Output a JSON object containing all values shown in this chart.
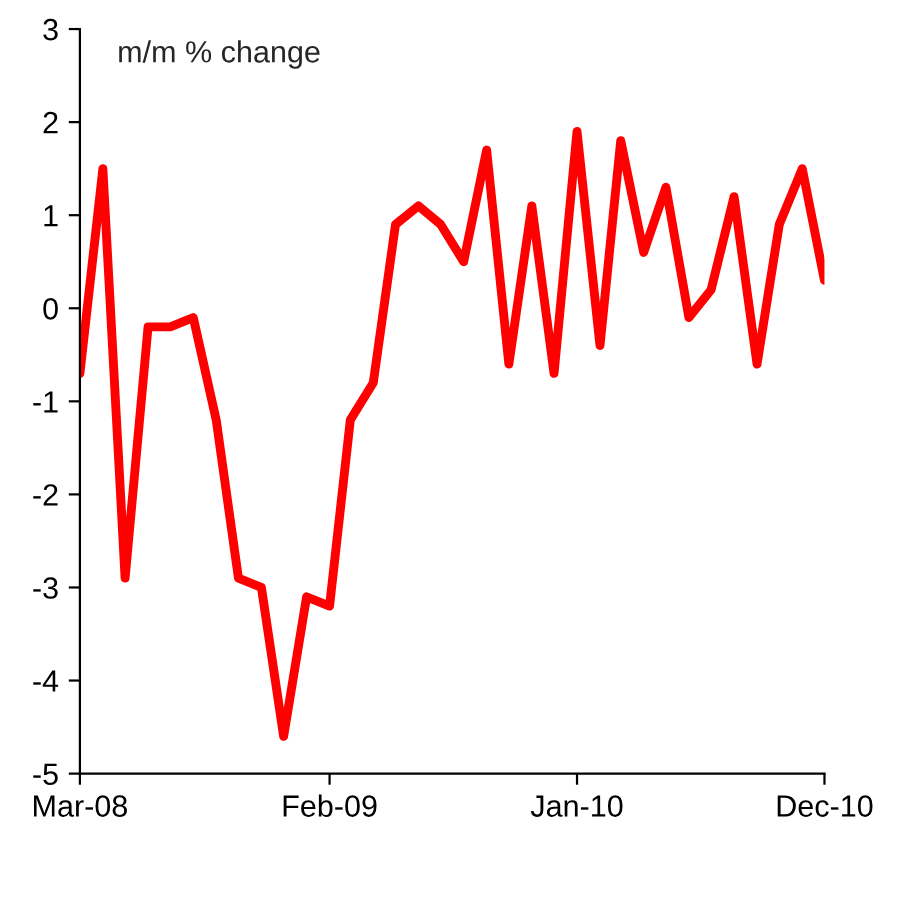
{
  "chart_data": {
    "type": "line",
    "ylabel": "m/m % change",
    "x": [
      "2008-03",
      "2008-04",
      "2008-05",
      "2008-06",
      "2008-07",
      "2008-08",
      "2008-09",
      "2008-10",
      "2008-11",
      "2008-12",
      "2009-01",
      "2009-02",
      "2009-03",
      "2009-04",
      "2009-05",
      "2009-06",
      "2009-07",
      "2009-08",
      "2009-09",
      "2009-10",
      "2009-11",
      "2009-12",
      "2010-01",
      "2010-02",
      "2010-03",
      "2010-04",
      "2010-05",
      "2010-06",
      "2010-07",
      "2010-08",
      "2010-09",
      "2010-10",
      "2010-11",
      "2010-12"
    ],
    "series": [
      {
        "color": "#ff0000",
        "values": [
          -0.7,
          1.5,
          -2.9,
          -0.2,
          -0.2,
          -0.1,
          -1.2,
          -2.9,
          -3.0,
          -4.6,
          -3.1,
          -3.2,
          -1.2,
          -0.8,
          0.9,
          1.1,
          0.9,
          0.5,
          1.7,
          -0.6,
          1.1,
          -0.7,
          1.9,
          -0.4,
          1.8,
          0.6,
          1.3,
          -0.1,
          0.2,
          1.2,
          -0.6,
          0.9,
          1.5,
          0.3
        ]
      }
    ],
    "xlim": [
      "2008-03",
      "2010-12"
    ],
    "xticks": [
      {
        "value": "2008-03",
        "label": "Mar-08"
      },
      {
        "value": "2009-02",
        "label": "Feb-09"
      },
      {
        "value": "2010-01",
        "label": "Jan-10"
      },
      {
        "value": "2010-12",
        "label": "Dec-10"
      }
    ],
    "ylim": [
      -5,
      3
    ],
    "yticks": [
      -5,
      -4,
      -3,
      -2,
      -1,
      0,
      1,
      2,
      3
    ],
    "grid": false,
    "legend": false,
    "marker": "none",
    "line_style": "solid"
  }
}
